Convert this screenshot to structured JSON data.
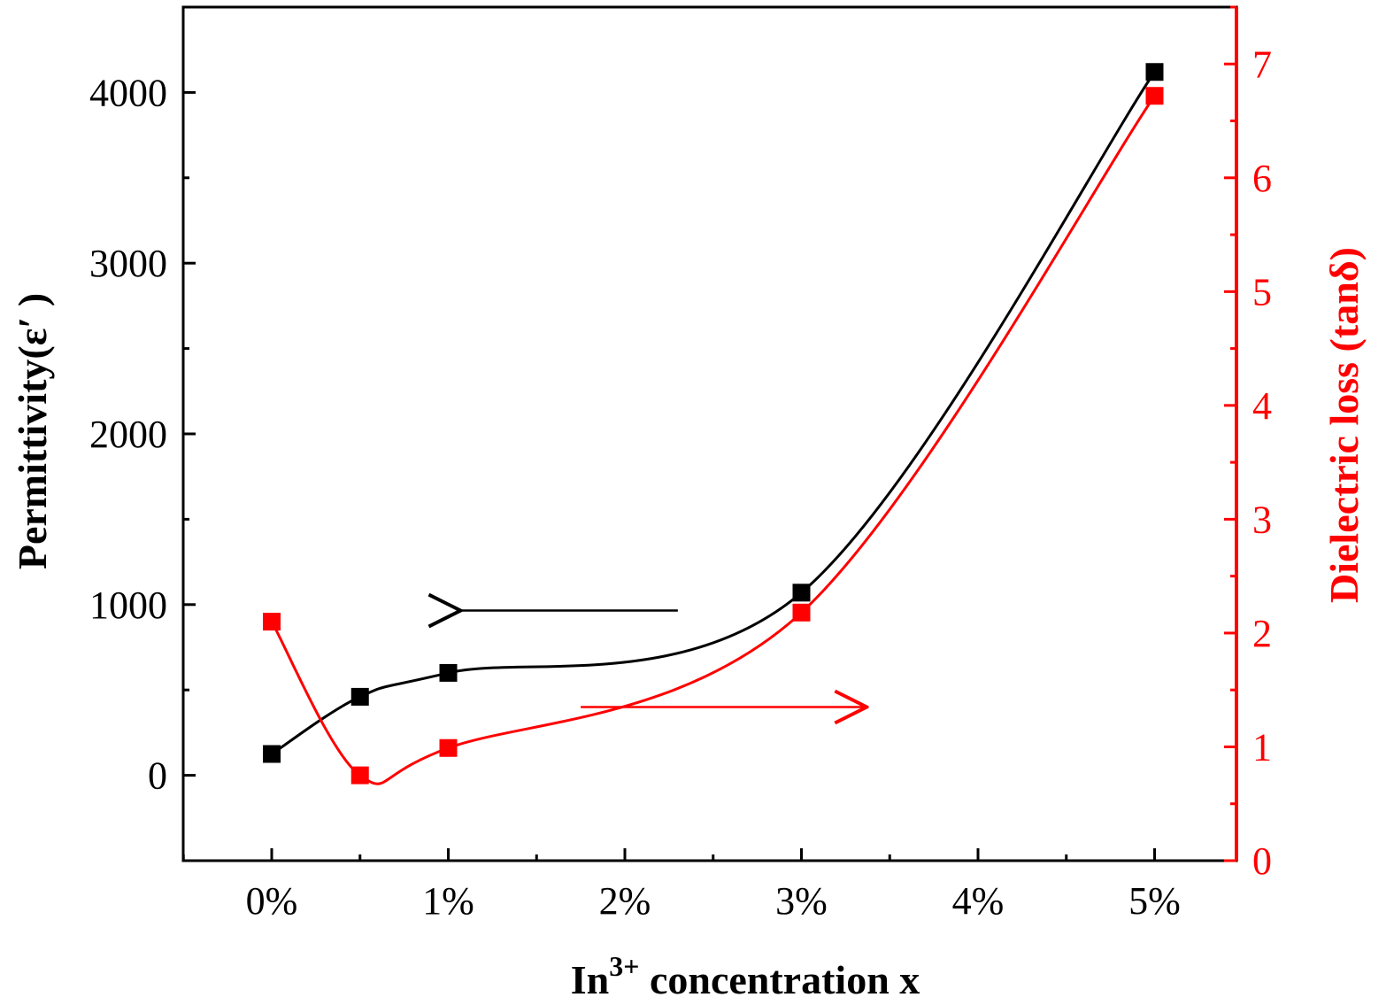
{
  "chart_data": {
    "type": "line",
    "title": "",
    "x_tick_labels": [
      "0%",
      "1%",
      "2%",
      "3%",
      "4%",
      "5%"
    ],
    "xlim": [
      -0.5,
      5.4
    ],
    "x_tick_values": [
      0,
      1,
      2,
      3,
      4,
      5
    ],
    "xlabel": {
      "base": "In",
      "sup": "3+",
      "rest": " concentration x"
    },
    "ylabel_left": "Permittivity(ε′ )",
    "ylabel_right": "Dielectric loss (tanδ)",
    "ylim_left": [
      -500,
      4500
    ],
    "yticks_left": [
      0,
      1000,
      2000,
      3000,
      4000
    ],
    "ylim_right": [
      0,
      7.5
    ],
    "yticks_right": [
      0,
      1,
      2,
      3,
      4,
      5,
      6,
      7
    ],
    "grid": false,
    "series": [
      {
        "axis": "left",
        "color": "#000000",
        "marker": "square",
        "x": [
          0,
          0.5,
          1,
          3,
          5
        ],
        "y": [
          125,
          460,
          600,
          1070,
          4120
        ]
      },
      {
        "axis": "right",
        "color": "#ff0000",
        "marker": "square",
        "x": [
          0,
          0.5,
          1,
          3,
          5
        ],
        "y": [
          2.1,
          0.75,
          0.99,
          2.18,
          6.72
        ]
      }
    ],
    "annotations": [
      {
        "type": "arrow",
        "direction": "left",
        "color": "#000000",
        "axis": "left",
        "x_from": 2.3,
        "x_to": 1.07,
        "y": 965
      },
      {
        "type": "arrow",
        "direction": "right",
        "color": "#ff0000",
        "axis": "right",
        "x_from": 1.75,
        "x_to": 3.37,
        "y": 1.35
      }
    ]
  }
}
